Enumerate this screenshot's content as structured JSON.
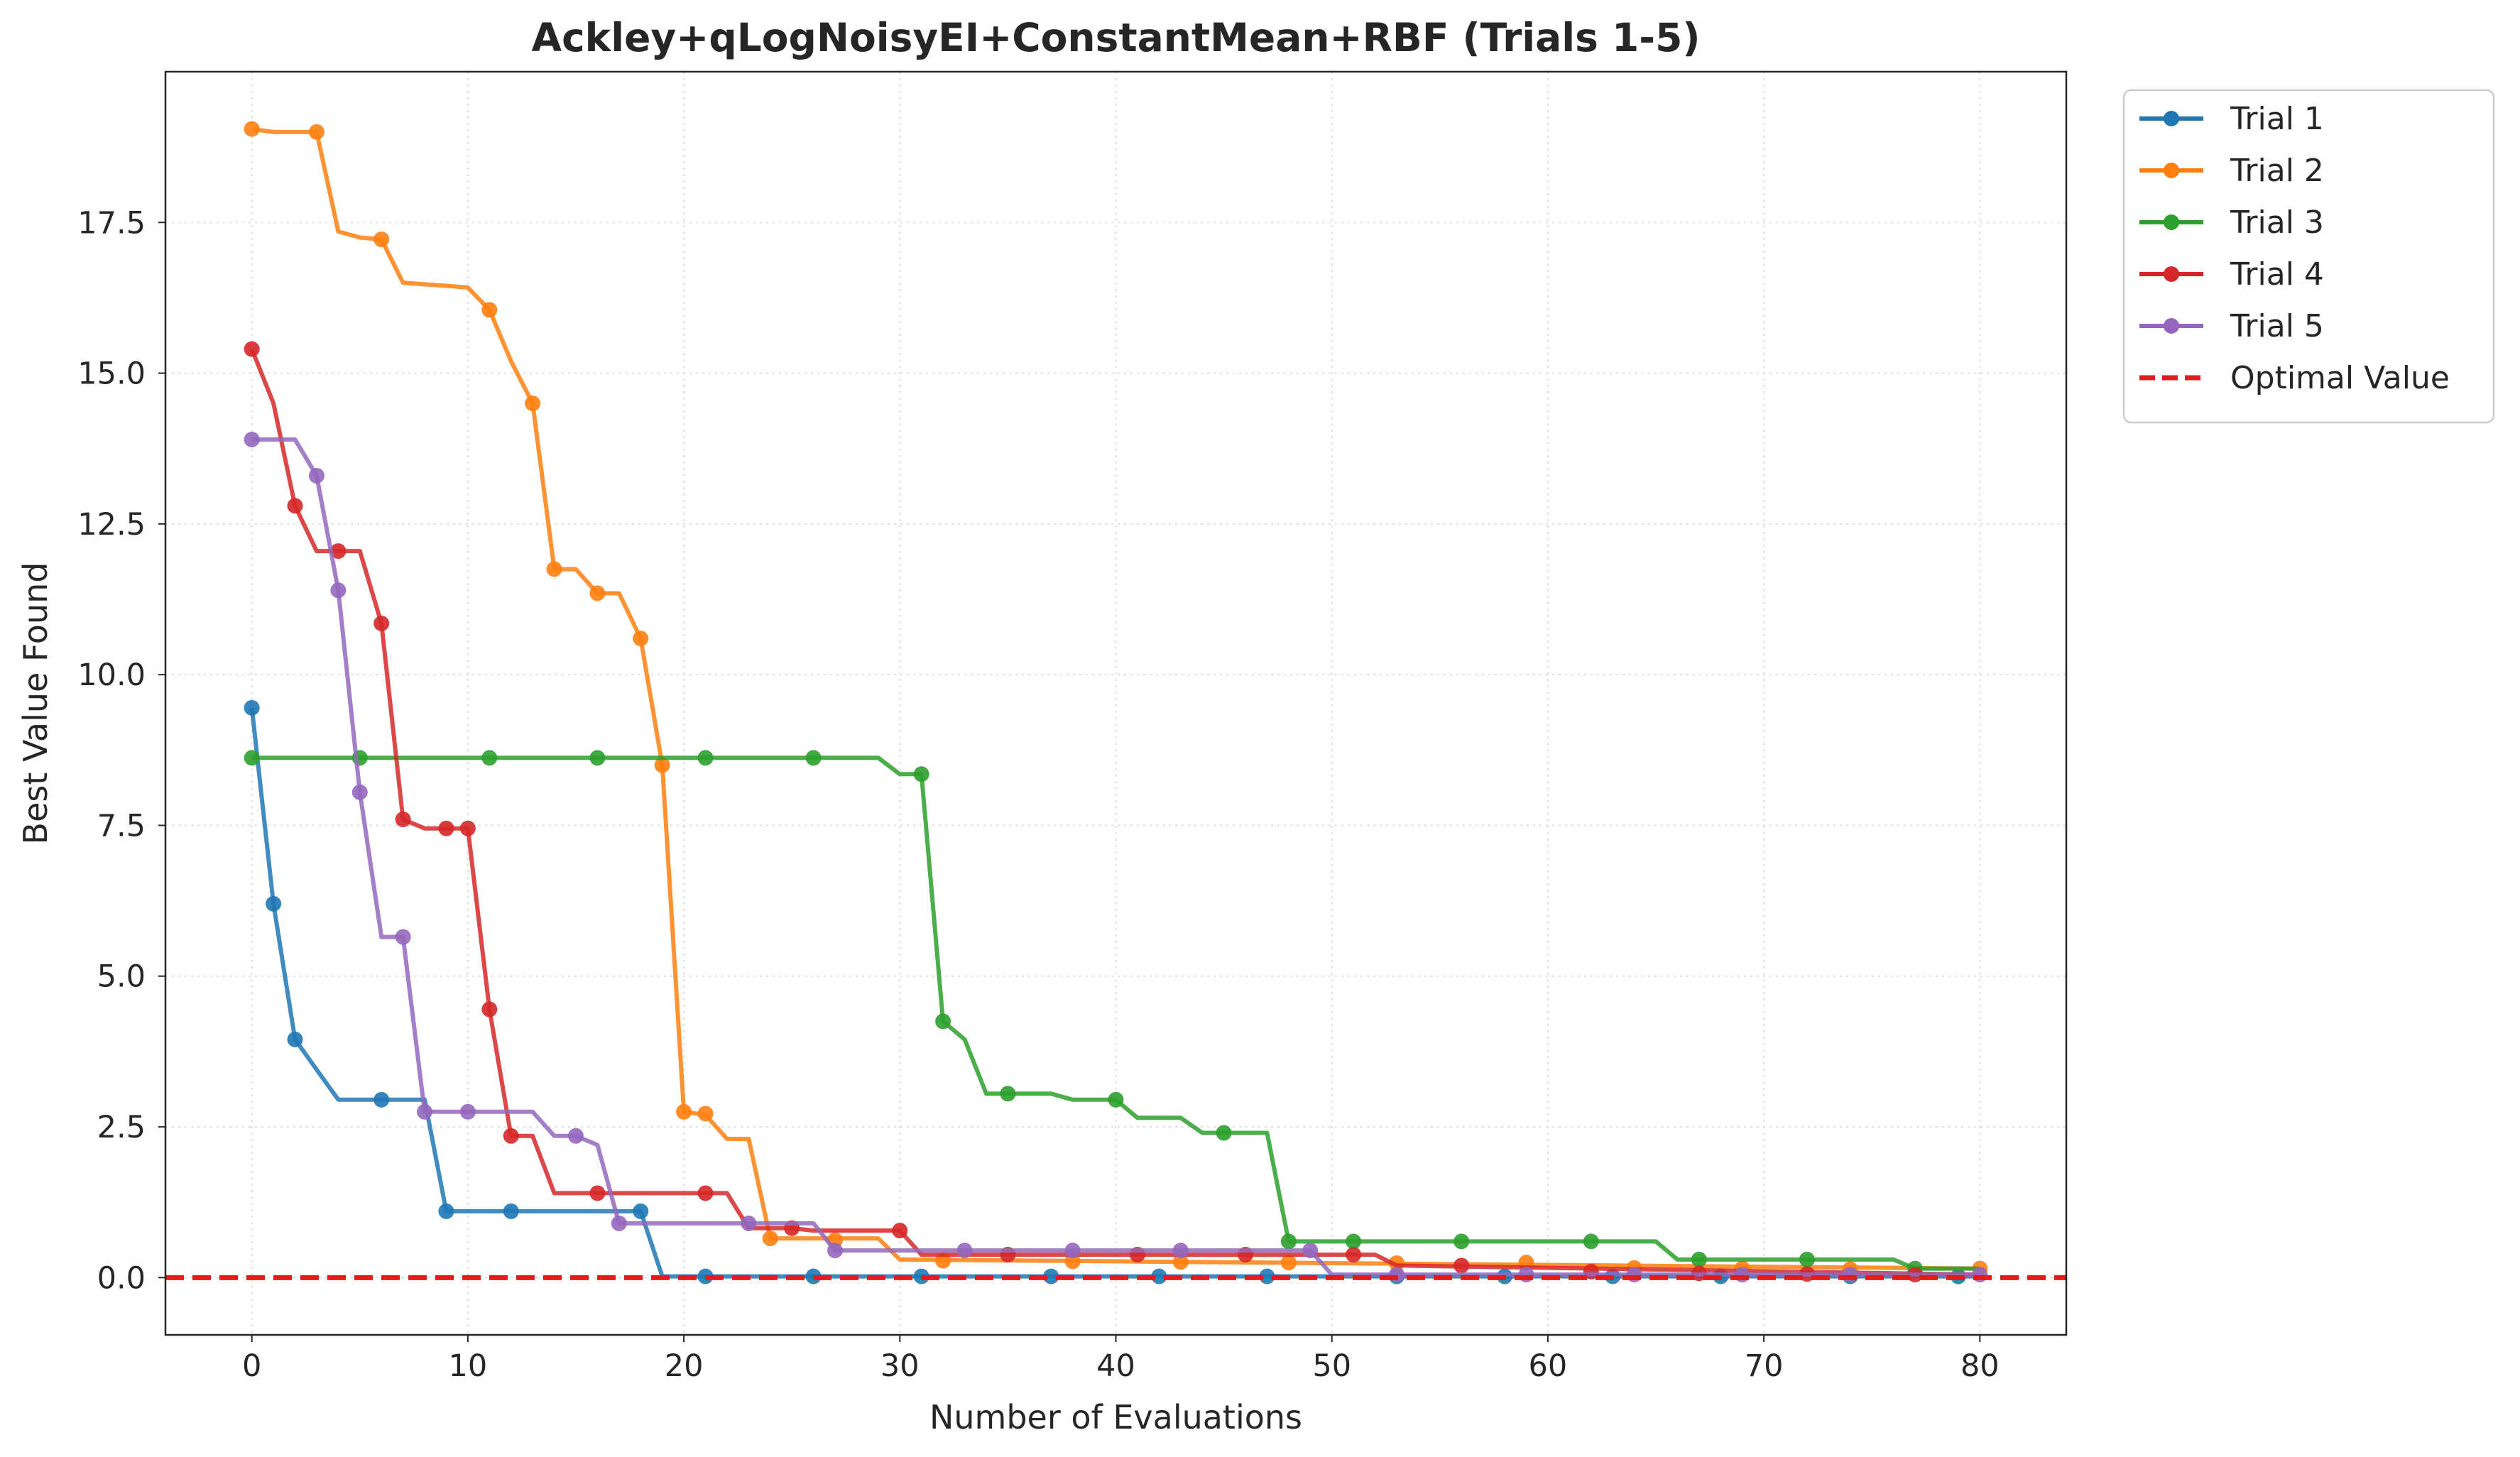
{
  "chart_data": {
    "type": "line",
    "title": "Ackley+qLogNoisyEI+ConstantMean+RBF (Trials 1-5)",
    "xlabel": "Number of Evaluations",
    "ylabel": "Best Value Found",
    "xlim": [
      -4,
      84
    ],
    "ylim": [
      -0.95,
      20.0
    ],
    "xticks": [
      0,
      10,
      20,
      30,
      40,
      50,
      60,
      70,
      80
    ],
    "yticks": [
      0.0,
      2.5,
      5.0,
      7.5,
      10.0,
      12.5,
      15.0,
      17.5
    ],
    "xtick_labels": [
      "0",
      "10",
      "20",
      "30",
      "40",
      "50",
      "60",
      "70",
      "80"
    ],
    "ytick_labels": [
      "0.0",
      "2.5",
      "5.0",
      "7.5",
      "10.0",
      "12.5",
      "15.0",
      "17.5"
    ],
    "grid": true,
    "legend_position": "outside-top-right",
    "series": [
      {
        "name": "Trial 1",
        "color": "#1f77b4",
        "line": [
          [
            0,
            9.45
          ],
          [
            1,
            6.2
          ],
          [
            2,
            3.95
          ],
          [
            3,
            3.45
          ],
          [
            4,
            2.95
          ],
          [
            8,
            2.95
          ],
          [
            9,
            1.1
          ],
          [
            18,
            1.1
          ],
          [
            19,
            0.02
          ],
          [
            80,
            0.02
          ]
        ],
        "markers": [
          [
            0,
            9.45
          ],
          [
            1,
            6.2
          ],
          [
            2,
            3.95
          ],
          [
            6,
            2.95
          ],
          [
            9,
            1.1
          ],
          [
            12,
            1.1
          ],
          [
            18,
            1.1
          ],
          [
            21,
            0.02
          ],
          [
            26,
            0.02
          ],
          [
            31,
            0.02
          ],
          [
            37,
            0.02
          ],
          [
            42,
            0.02
          ],
          [
            47,
            0.02
          ],
          [
            53,
            0.02
          ],
          [
            58,
            0.02
          ],
          [
            63,
            0.02
          ],
          [
            68,
            0.02
          ],
          [
            74,
            0.02
          ],
          [
            79,
            0.02
          ]
        ]
      },
      {
        "name": "Trial 2",
        "color": "#ff7f0e",
        "line": [
          [
            0,
            19.05
          ],
          [
            1,
            19.0
          ],
          [
            3,
            19.0
          ],
          [
            4,
            17.35
          ],
          [
            5,
            17.25
          ],
          [
            6,
            17.22
          ],
          [
            7,
            16.5
          ],
          [
            9,
            16.45
          ],
          [
            10,
            16.42
          ],
          [
            11,
            16.05
          ],
          [
            12,
            15.2
          ],
          [
            13,
            14.5
          ],
          [
            14,
            11.75
          ],
          [
            15,
            11.75
          ],
          [
            16,
            11.35
          ],
          [
            17,
            11.35
          ],
          [
            18,
            10.6
          ],
          [
            19,
            8.5
          ],
          [
            20,
            2.75
          ],
          [
            21,
            2.7
          ],
          [
            22,
            2.3
          ],
          [
            23,
            2.3
          ],
          [
            24,
            0.65
          ],
          [
            29,
            0.65
          ],
          [
            30,
            0.3
          ],
          [
            80,
            0.15
          ]
        ],
        "markers": [
          [
            0,
            19.05
          ],
          [
            3,
            19.0
          ],
          [
            6,
            17.22
          ],
          [
            11,
            16.05
          ],
          [
            13,
            14.5
          ],
          [
            14,
            11.75
          ],
          [
            16,
            11.35
          ],
          [
            18,
            10.6
          ],
          [
            19,
            8.5
          ],
          [
            20,
            2.75
          ],
          [
            21,
            2.72
          ],
          [
            24,
            0.65
          ],
          [
            27,
            0.62
          ],
          [
            32,
            0.28
          ],
          [
            38,
            0.27
          ],
          [
            43,
            0.26
          ],
          [
            48,
            0.25
          ],
          [
            53,
            0.24
          ],
          [
            59,
            0.25
          ],
          [
            64,
            0.16
          ],
          [
            69,
            0.15
          ],
          [
            74,
            0.14
          ],
          [
            80,
            0.15
          ]
        ]
      },
      {
        "name": "Trial 3",
        "color": "#2ca02c",
        "line": [
          [
            0,
            8.62
          ],
          [
            29,
            8.62
          ],
          [
            30,
            8.35
          ],
          [
            31,
            8.35
          ],
          [
            32,
            4.25
          ],
          [
            33,
            3.95
          ],
          [
            34,
            3.05
          ],
          [
            37,
            3.05
          ],
          [
            38,
            2.95
          ],
          [
            40,
            2.95
          ],
          [
            41,
            2.65
          ],
          [
            43,
            2.65
          ],
          [
            44,
            2.4
          ],
          [
            47,
            2.4
          ],
          [
            48,
            0.6
          ],
          [
            65,
            0.6
          ],
          [
            66,
            0.3
          ],
          [
            76,
            0.3
          ],
          [
            77,
            0.15
          ],
          [
            80,
            0.15
          ]
        ],
        "markers": [
          [
            0,
            8.62
          ],
          [
            5,
            8.62
          ],
          [
            11,
            8.62
          ],
          [
            16,
            8.62
          ],
          [
            21,
            8.62
          ],
          [
            26,
            8.62
          ],
          [
            31,
            8.35
          ],
          [
            32,
            4.25
          ],
          [
            35,
            3.05
          ],
          [
            40,
            2.95
          ],
          [
            45,
            2.4
          ],
          [
            48,
            0.6
          ],
          [
            51,
            0.6
          ],
          [
            56,
            0.6
          ],
          [
            62,
            0.6
          ],
          [
            67,
            0.3
          ],
          [
            72,
            0.3
          ],
          [
            77,
            0.15
          ]
        ]
      },
      {
        "name": "Trial 4",
        "color": "#d62728",
        "line": [
          [
            0,
            15.4
          ],
          [
            1,
            14.5
          ],
          [
            2,
            12.8
          ],
          [
            3,
            12.05
          ],
          [
            5,
            12.05
          ],
          [
            6,
            10.85
          ],
          [
            7,
            7.6
          ],
          [
            8,
            7.45
          ],
          [
            10,
            7.45
          ],
          [
            11,
            4.45
          ],
          [
            12,
            2.35
          ],
          [
            13,
            2.35
          ],
          [
            14,
            1.4
          ],
          [
            22,
            1.4
          ],
          [
            23,
            0.82
          ],
          [
            25,
            0.82
          ],
          [
            26,
            0.78
          ],
          [
            30,
            0.78
          ],
          [
            31,
            0.38
          ],
          [
            52,
            0.38
          ],
          [
            53,
            0.2
          ],
          [
            80,
            0.05
          ]
        ],
        "markers": [
          [
            0,
            15.4
          ],
          [
            2,
            12.8
          ],
          [
            4,
            12.05
          ],
          [
            6,
            10.85
          ],
          [
            7,
            7.6
          ],
          [
            9,
            7.45
          ],
          [
            10,
            7.45
          ],
          [
            11,
            4.45
          ],
          [
            12,
            2.35
          ],
          [
            16,
            1.4
          ],
          [
            21,
            1.4
          ],
          [
            25,
            0.82
          ],
          [
            30,
            0.78
          ],
          [
            35,
            0.38
          ],
          [
            41,
            0.38
          ],
          [
            46,
            0.38
          ],
          [
            51,
            0.38
          ],
          [
            56,
            0.2
          ],
          [
            62,
            0.1
          ],
          [
            67,
            0.07
          ],
          [
            72,
            0.06
          ],
          [
            77,
            0.05
          ]
        ]
      },
      {
        "name": "Trial 5",
        "color": "#9467bd",
        "line": [
          [
            0,
            13.9
          ],
          [
            2,
            13.9
          ],
          [
            3,
            13.3
          ],
          [
            4,
            11.4
          ],
          [
            5,
            8.05
          ],
          [
            6,
            5.65
          ],
          [
            7,
            5.65
          ],
          [
            8,
            2.75
          ],
          [
            13,
            2.75
          ],
          [
            14,
            2.35
          ],
          [
            15,
            2.35
          ],
          [
            16,
            2.2
          ],
          [
            17,
            0.9
          ],
          [
            26,
            0.9
          ],
          [
            27,
            0.45
          ],
          [
            49,
            0.45
          ],
          [
            50,
            0.05
          ],
          [
            80,
            0.05
          ]
        ],
        "markers": [
          [
            0,
            13.9
          ],
          [
            3,
            13.3
          ],
          [
            4,
            11.4
          ],
          [
            5,
            8.05
          ],
          [
            7,
            5.65
          ],
          [
            8,
            2.75
          ],
          [
            10,
            2.75
          ],
          [
            15,
            2.35
          ],
          [
            17,
            0.9
          ],
          [
            23,
            0.9
          ],
          [
            27,
            0.45
          ],
          [
            33,
            0.45
          ],
          [
            38,
            0.45
          ],
          [
            43,
            0.45
          ],
          [
            49,
            0.45
          ],
          [
            53,
            0.05
          ],
          [
            59,
            0.05
          ],
          [
            64,
            0.05
          ],
          [
            69,
            0.05
          ],
          [
            74,
            0.05
          ],
          [
            80,
            0.05
          ]
        ]
      }
    ],
    "reference_line": {
      "name": "Optimal Value",
      "y": 0.0,
      "color": "#e41a1c",
      "style": "dashed"
    }
  }
}
